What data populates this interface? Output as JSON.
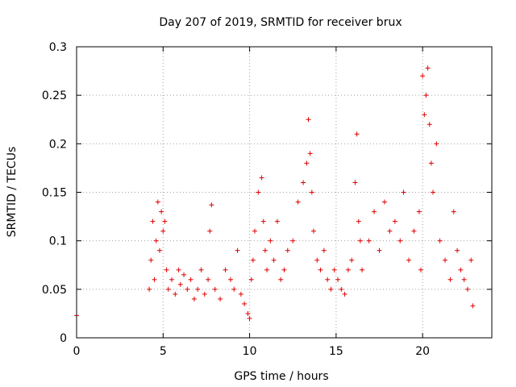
{
  "chart_data": {
    "type": "scatter",
    "title": "Day 207 of 2019, SRMTID for receiver brux",
    "xlabel": "GPS time / hours",
    "ylabel": "SRMTID / TECUs",
    "xlim": [
      0,
      24
    ],
    "ylim": [
      0,
      0.3
    ],
    "x_ticks": [
      0,
      5,
      10,
      15,
      20
    ],
    "x_tick_labels": [
      "0",
      "5",
      "10",
      "15",
      "20"
    ],
    "y_ticks": [
      0,
      0.05,
      0.1,
      0.15,
      0.2,
      0.25,
      0.3
    ],
    "y_tick_labels": [
      "0",
      "0.05",
      "0.1",
      "0.15",
      "0.2",
      "0.25",
      "0.3"
    ],
    "grid": true,
    "marker": "+",
    "series": [
      {
        "name": "SRMTID",
        "color": "#e00000",
        "x": [
          0.0,
          4.2,
          4.3,
          4.4,
          4.5,
          4.6,
          4.7,
          4.8,
          4.9,
          5.0,
          5.1,
          5.2,
          5.3,
          5.5,
          5.7,
          5.9,
          6.0,
          6.2,
          6.4,
          6.6,
          6.8,
          7.0,
          7.2,
          7.4,
          7.6,
          7.7,
          7.8,
          8.0,
          8.3,
          8.6,
          8.9,
          9.1,
          9.3,
          9.5,
          9.7,
          9.9,
          10.0,
          10.1,
          10.2,
          10.3,
          10.5,
          10.7,
          10.8,
          10.9,
          11.0,
          11.2,
          11.4,
          11.6,
          11.8,
          12.0,
          12.2,
          12.5,
          12.8,
          13.1,
          13.3,
          13.4,
          13.5,
          13.6,
          13.7,
          13.9,
          14.1,
          14.3,
          14.5,
          14.7,
          14.9,
          15.1,
          15.3,
          15.5,
          15.7,
          15.9,
          16.1,
          16.2,
          16.3,
          16.4,
          16.5,
          16.9,
          17.2,
          17.5,
          17.8,
          18.1,
          18.4,
          18.7,
          18.9,
          19.2,
          19.5,
          19.8,
          19.9,
          20.0,
          20.1,
          20.2,
          20.3,
          20.4,
          20.5,
          20.6,
          20.8,
          21.0,
          21.3,
          21.6,
          21.8,
          22.0,
          22.2,
          22.4,
          22.6,
          22.8,
          22.9
        ],
        "values": [
          0.023,
          0.05,
          0.08,
          0.12,
          0.06,
          0.1,
          0.14,
          0.09,
          0.13,
          0.11,
          0.12,
          0.07,
          0.05,
          0.06,
          0.045,
          0.07,
          0.055,
          0.065,
          0.05,
          0.06,
          0.04,
          0.05,
          0.07,
          0.045,
          0.06,
          0.11,
          0.137,
          0.05,
          0.04,
          0.07,
          0.06,
          0.05,
          0.09,
          0.045,
          0.035,
          0.025,
          0.02,
          0.06,
          0.08,
          0.11,
          0.15,
          0.165,
          0.12,
          0.09,
          0.07,
          0.1,
          0.08,
          0.12,
          0.06,
          0.07,
          0.09,
          0.1,
          0.14,
          0.16,
          0.18,
          0.225,
          0.19,
          0.15,
          0.11,
          0.08,
          0.07,
          0.09,
          0.06,
          0.05,
          0.07,
          0.06,
          0.05,
          0.045,
          0.07,
          0.08,
          0.16,
          0.21,
          0.12,
          0.1,
          0.07,
          0.1,
          0.13,
          0.09,
          0.14,
          0.11,
          0.12,
          0.1,
          0.15,
          0.08,
          0.11,
          0.13,
          0.07,
          0.27,
          0.23,
          0.25,
          0.278,
          0.22,
          0.18,
          0.15,
          0.2,
          0.1,
          0.08,
          0.06,
          0.13,
          0.09,
          0.07,
          0.06,
          0.05,
          0.08,
          0.033
        ]
      }
    ]
  }
}
